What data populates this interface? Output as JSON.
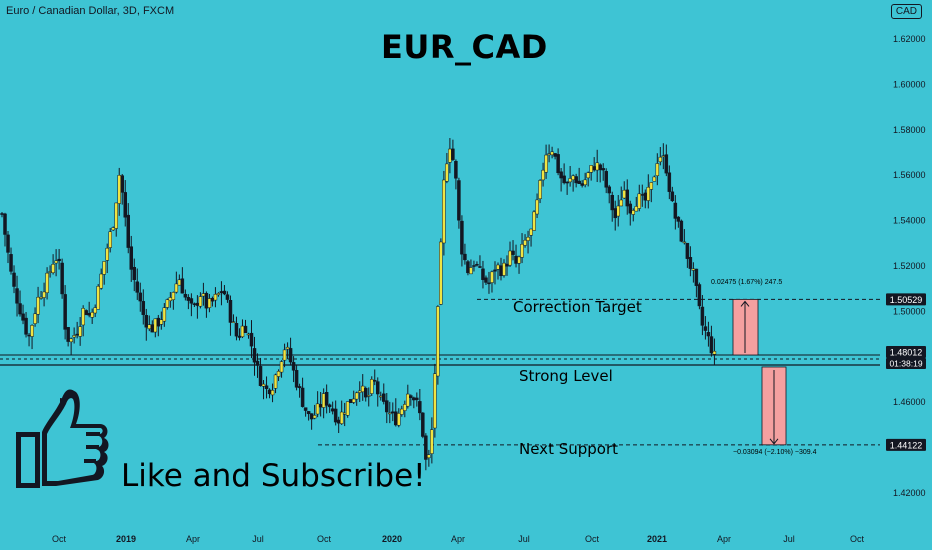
{
  "header": {
    "symbol_info": "Euro / Canadian Dollar, 3D, FXCM",
    "currency_button": "CAD"
  },
  "overlay": {
    "title": "EUR_CAD",
    "cta": "Like and Subscribe!",
    "labels": {
      "correction_target": "Correction Target",
      "strong_level": "Strong Level",
      "next_support": "Next Support"
    },
    "measure_up": "0.02475 (1.67%) 247.5",
    "measure_down": "−0.03094 (−2.10%) −309.4"
  },
  "colors": {
    "background": "#3ec4d4",
    "candle_up": "#f0e442",
    "candle_down": "#131722",
    "range_fill": "#f4a0a0",
    "price_tag": "#131722"
  },
  "chart_data": {
    "type": "candlestick",
    "symbol": "EUR/CAD",
    "timeframe": "3D",
    "source": "FXCM",
    "ylim": [
      1.4,
      1.63
    ],
    "y_ticks": [
      "1.62000",
      "1.60000",
      "1.58000",
      "1.56000",
      "1.54000",
      "1.52000",
      "1.50000",
      "1.46000",
      "1.42000"
    ],
    "x_ticks": [
      "Oct",
      "2019",
      "Apr",
      "Jul",
      "Oct",
      "2020",
      "Apr",
      "Jul",
      "Oct",
      "2021",
      "Apr",
      "Jul",
      "Oct"
    ],
    "price_tags": [
      {
        "value": "1.50529",
        "highlight": false
      },
      {
        "value": "1.48012",
        "highlight": true
      },
      {
        "value": "1.44122",
        "highlight": false
      }
    ],
    "countdown": "01:38:19",
    "levels": [
      {
        "name": "Correction Target",
        "value": 1.50529
      },
      {
        "name": "Strong Level",
        "value": 1.475
      },
      {
        "name": "Next Support",
        "value": 1.44122
      }
    ],
    "price_path": [
      [
        0.0,
        1.543
      ],
      [
        0.012,
        1.512
      ],
      [
        0.022,
        1.499
      ],
      [
        0.03,
        1.488
      ],
      [
        0.04,
        1.505
      ],
      [
        0.052,
        1.515
      ],
      [
        0.06,
        1.525
      ],
      [
        0.066,
        1.518
      ],
      [
        0.07,
        1.496
      ],
      [
        0.076,
        1.486
      ],
      [
        0.085,
        1.492
      ],
      [
        0.093,
        1.502
      ],
      [
        0.1,
        1.497
      ],
      [
        0.108,
        1.508
      ],
      [
        0.117,
        1.525
      ],
      [
        0.126,
        1.54
      ],
      [
        0.133,
        1.562
      ],
      [
        0.138,
        1.545
      ],
      [
        0.145,
        1.52
      ],
      [
        0.152,
        1.51
      ],
      [
        0.16,
        1.498
      ],
      [
        0.168,
        1.492
      ],
      [
        0.176,
        1.495
      ],
      [
        0.184,
        1.5
      ],
      [
        0.192,
        1.508
      ],
      [
        0.2,
        1.515
      ],
      [
        0.208,
        1.505
      ],
      [
        0.216,
        1.5
      ],
      [
        0.224,
        1.508
      ],
      [
        0.232,
        1.502
      ],
      [
        0.24,
        1.505
      ],
      [
        0.25,
        1.51
      ],
      [
        0.258,
        1.498
      ],
      [
        0.266,
        1.488
      ],
      [
        0.274,
        1.495
      ],
      [
        0.282,
        1.485
      ],
      [
        0.29,
        1.472
      ],
      [
        0.298,
        1.465
      ],
      [
        0.306,
        1.468
      ],
      [
        0.314,
        1.478
      ],
      [
        0.32,
        1.485
      ],
      [
        0.326,
        1.478
      ],
      [
        0.332,
        1.47
      ],
      [
        0.34,
        1.46
      ],
      [
        0.348,
        1.452
      ],
      [
        0.356,
        1.456
      ],
      [
        0.364,
        1.462
      ],
      [
        0.372,
        1.458
      ],
      [
        0.38,
        1.452
      ],
      [
        0.388,
        1.458
      ],
      [
        0.396,
        1.462
      ],
      [
        0.404,
        1.468
      ],
      [
        0.412,
        1.46
      ],
      [
        0.42,
        1.47
      ],
      [
        0.428,
        1.46
      ],
      [
        0.436,
        1.456
      ],
      [
        0.444,
        1.452
      ],
      [
        0.452,
        1.458
      ],
      [
        0.46,
        1.466
      ],
      [
        0.468,
        1.46
      ],
      [
        0.474,
        1.452
      ],
      [
        0.48,
        1.43
      ],
      [
        0.485,
        1.442
      ],
      [
        0.492,
        1.495
      ],
      [
        0.5,
        1.562
      ],
      [
        0.506,
        1.574
      ],
      [
        0.512,
        1.562
      ],
      [
        0.518,
        1.53
      ],
      [
        0.526,
        1.518
      ],
      [
        0.534,
        1.522
      ],
      [
        0.542,
        1.515
      ],
      [
        0.55,
        1.512
      ],
      [
        0.558,
        1.52
      ],
      [
        0.566,
        1.518
      ],
      [
        0.574,
        1.525
      ],
      [
        0.582,
        1.52
      ],
      [
        0.59,
        1.53
      ],
      [
        0.598,
        1.535
      ],
      [
        0.606,
        1.55
      ],
      [
        0.614,
        1.57
      ],
      [
        0.622,
        1.572
      ],
      [
        0.63,
        1.56
      ],
      [
        0.638,
        1.555
      ],
      [
        0.646,
        1.56
      ],
      [
        0.654,
        1.555
      ],
      [
        0.662,
        1.56
      ],
      [
        0.67,
        1.565
      ],
      [
        0.678,
        1.562
      ],
      [
        0.686,
        1.55
      ],
      [
        0.694,
        1.54
      ],
      [
        0.702,
        1.555
      ],
      [
        0.71,
        1.545
      ],
      [
        0.718,
        1.55
      ],
      [
        0.726,
        1.548
      ],
      [
        0.734,
        1.555
      ],
      [
        0.742,
        1.57
      ],
      [
        0.75,
        1.565
      ],
      [
        0.758,
        1.545
      ],
      [
        0.766,
        1.535
      ],
      [
        0.774,
        1.525
      ],
      [
        0.782,
        1.515
      ],
      [
        0.79,
        1.495
      ],
      [
        0.798,
        1.488
      ],
      [
        0.805,
        1.48
      ]
    ]
  }
}
